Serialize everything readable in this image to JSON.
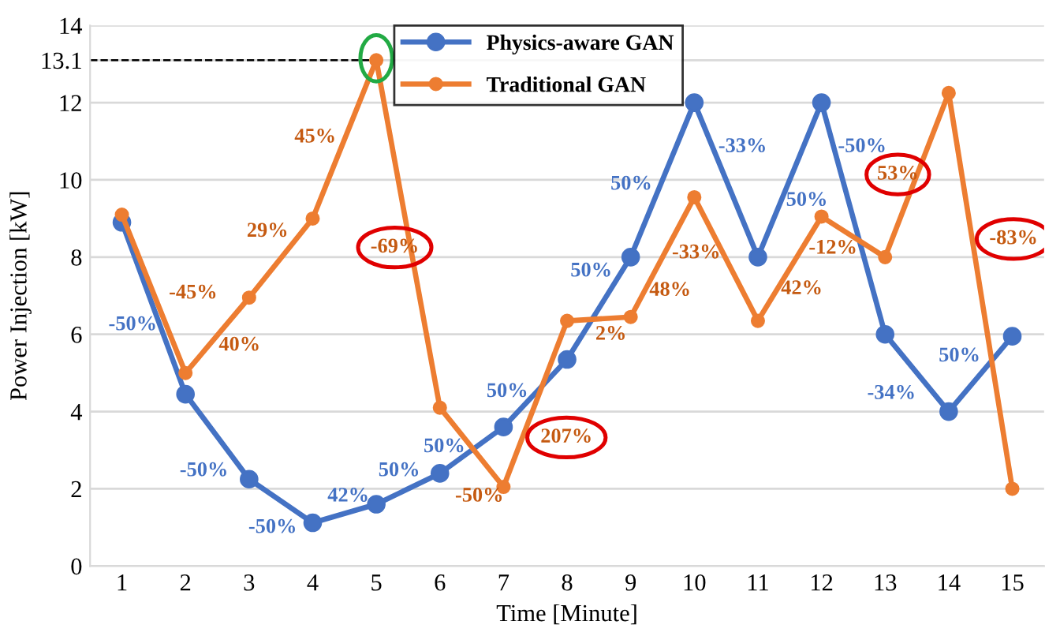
{
  "chart_data": {
    "type": "line",
    "xlabel": "Time [Minute]",
    "ylabel": "Power Injection [kW]",
    "x": [
      1,
      2,
      3,
      4,
      5,
      6,
      7,
      8,
      9,
      10,
      11,
      12,
      13,
      14,
      15
    ],
    "xlim": [
      0.5,
      15.5
    ],
    "xticks": [
      1,
      2,
      3,
      4,
      5,
      6,
      7,
      8,
      9,
      10,
      11,
      12,
      13,
      14,
      15
    ],
    "ylim": [
      0,
      14
    ],
    "yticks": [
      0,
      2,
      4,
      6,
      8,
      10,
      12,
      13.1,
      14
    ],
    "grid": "y",
    "legend": "top",
    "marker": "circle",
    "line_style": "solid",
    "ref_lines": [
      {
        "axis": "y",
        "value": 13.1,
        "color": "#000000",
        "line_style": "dashed"
      }
    ],
    "series": [
      {
        "name": "Physics-aware GAN",
        "color": "#4472c4",
        "values": [
          8.9,
          4.45,
          2.25,
          1.12,
          1.6,
          2.4,
          3.6,
          5.35,
          8.0,
          12.0,
          8.0,
          12.0,
          6.0,
          4.0,
          5.95
        ]
      },
      {
        "name": "Traditional GAN",
        "color": "#ed7d31",
        "values": [
          9.1,
          5.0,
          6.95,
          9.0,
          13.1,
          4.1,
          2.05,
          6.35,
          6.45,
          9.55,
          6.35,
          9.05,
          8.0,
          12.25,
          2.0
        ]
      }
    ],
    "annotations": [
      "-50%",
      "-50%",
      "-50%",
      "42%",
      "50%",
      "50%",
      "50%",
      "50%",
      "50%",
      "-33%",
      "50%",
      "-50%",
      "-34%",
      "50%",
      "-45%",
      "40%",
      "29%",
      "45%",
      "-69%",
      "-50%",
      "207%",
      "2%",
      "48%",
      "-33%",
      "42%",
      "-12%",
      "53%",
      "-83%"
    ]
  }
}
